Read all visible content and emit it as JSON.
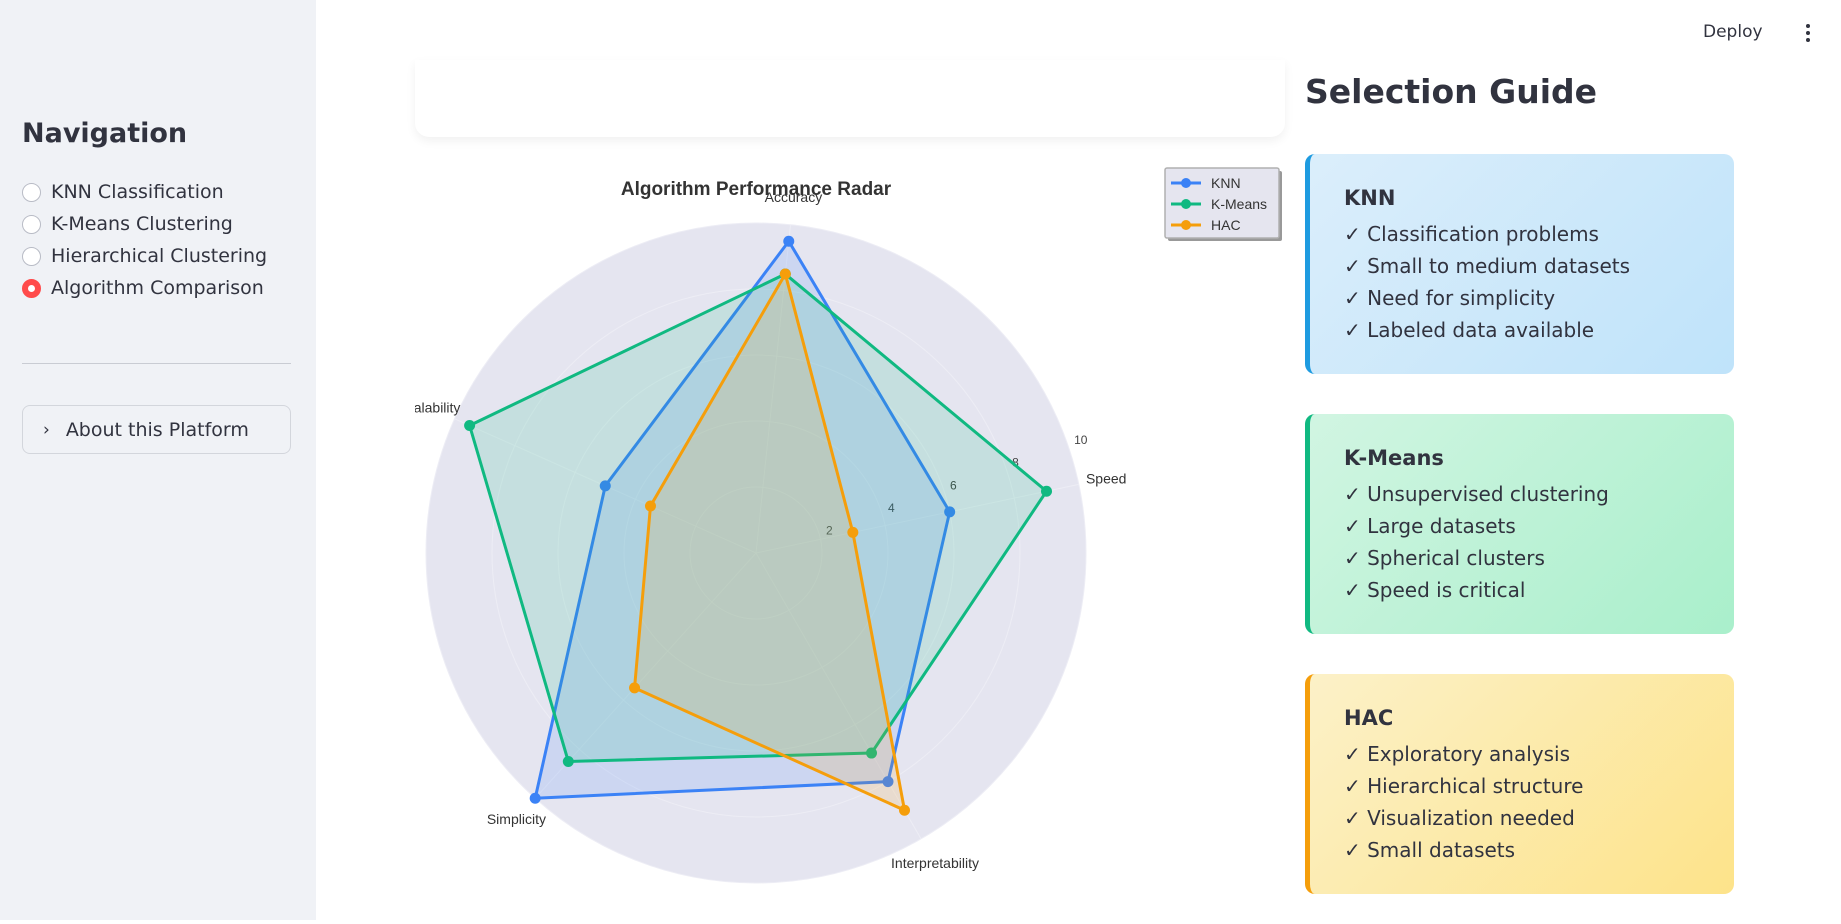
{
  "sidebar": {
    "title": "Navigation",
    "options": [
      {
        "label": "KNN Classification",
        "selected": false
      },
      {
        "label": "K-Means Clustering",
        "selected": false
      },
      {
        "label": "Hierarchical Clustering",
        "selected": false
      },
      {
        "label": "Algorithm Comparison",
        "selected": true
      }
    ],
    "expander_label": "About this Platform"
  },
  "header": {
    "deploy_label": "Deploy"
  },
  "chart_data": {
    "type": "radar",
    "title": "Algorithm Performance Radar",
    "axes": [
      "Accuracy",
      "Speed",
      "Interpretability",
      "Simplicity",
      "Scalability"
    ],
    "radial_ticks": [
      2,
      4,
      6,
      8,
      10
    ],
    "radial_range": [
      0,
      10
    ],
    "legend_position": "top-right",
    "series": [
      {
        "name": "KNN",
        "color": "#3b82f6",
        "values": [
          9.5,
          6,
          8,
          10,
          5
        ]
      },
      {
        "name": "K-Means",
        "color": "#10b981",
        "values": [
          8.5,
          9,
          7,
          8.5,
          9.5
        ]
      },
      {
        "name": "HAC",
        "color": "#f59e0b",
        "values": [
          8.5,
          3,
          9,
          5.5,
          3.5
        ]
      }
    ]
  },
  "guide": {
    "title": "Selection Guide",
    "cards": [
      {
        "title": "KNN",
        "items": [
          "✓ Classification problems",
          "✓ Small to medium datasets",
          "✓ Need for simplicity",
          "✓ Labeled data available"
        ]
      },
      {
        "title": "K-Means",
        "items": [
          "✓ Unsupervised clustering",
          "✓ Large datasets",
          "✓ Spherical clusters",
          "✓ Speed is critical"
        ]
      },
      {
        "title": "HAC",
        "items": [
          "✓ Exploratory analysis",
          "✓ Hierarchical structure",
          "✓ Visualization needed",
          "✓ Small datasets"
        ]
      }
    ]
  }
}
